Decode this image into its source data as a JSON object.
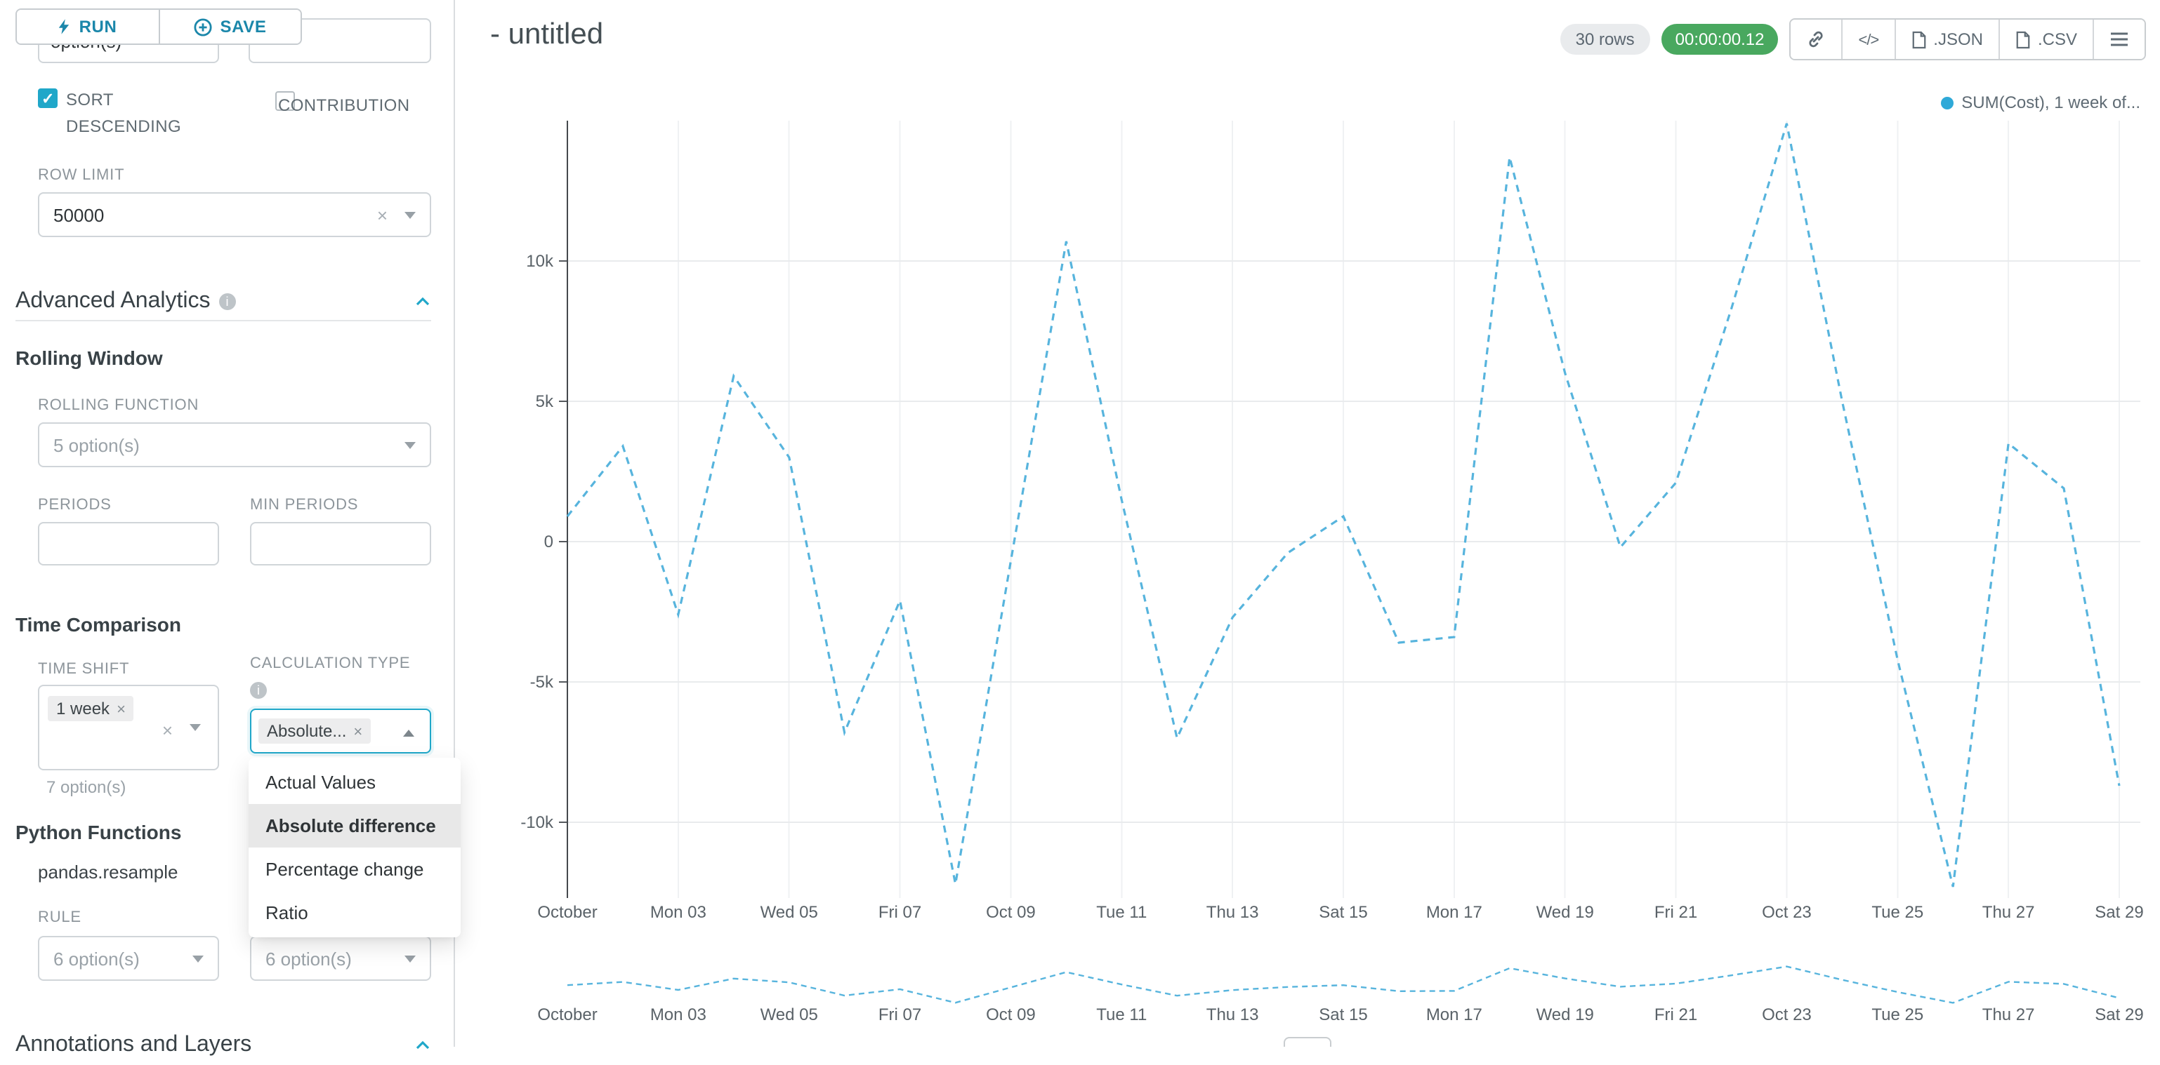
{
  "colors": {
    "primary": "#20a7c9",
    "run_save_text": "#1b87aa",
    "timer_bg": "#49a85f",
    "series_line": "#57b4dd",
    "legend_dot": "#2ea9d8",
    "selected_option_bg": "#e8e8e8"
  },
  "panel": {
    "run_label": "RUN",
    "save_label": "SAVE",
    "partial_select_text": "option(s)",
    "sort_descending_label": "SORT DESCENDING",
    "contribution_label": "CONTRIBUTION",
    "row_limit": {
      "label": "ROW LIMIT",
      "value": "50000"
    },
    "advanced_analytics_title": "Advanced Analytics",
    "rolling_window": {
      "title": "Rolling Window",
      "rolling_function_label": "ROLLING FUNCTION",
      "rolling_function_placeholder": "5 option(s)",
      "periods_label": "PERIODS",
      "min_periods_label": "MIN PERIODS"
    },
    "time_comparison": {
      "title": "Time Comparison",
      "time_shift_label": "TIME SHIFT",
      "time_shift_tag": "1 week",
      "time_shift_helper": "7 option(s)",
      "calculation_type_label": "CALCULATION TYPE",
      "calculation_type_value": "Absolute...",
      "dropdown_options": [
        "Actual Values",
        "Absolute difference",
        "Percentage change",
        "Ratio"
      ],
      "dropdown_selected": "Absolute difference"
    },
    "python_functions": {
      "title": "Python Functions",
      "function_name": "pandas.resample",
      "rule_label": "RULE",
      "rule_placeholder": "6 option(s)",
      "method_placeholder": "6 option(s)"
    },
    "annotations_title": "Annotations and Layers"
  },
  "header": {
    "title": "- untitled",
    "rows_badge": "30 rows",
    "timer_badge": "00:00:00.12",
    "json_label": ".JSON",
    "csv_label": ".CSV"
  },
  "chart_data": {
    "type": "line",
    "legend_label": "SUM(Cost), 1 week of...",
    "legend_position": "top-right",
    "grid": true,
    "x_tick_labels": [
      "October",
      "Mon 03",
      "Wed 05",
      "Fri 07",
      "Oct 09",
      "Tue 11",
      "Thu 13",
      "Sat 15",
      "Mon 17",
      "Wed 19",
      "Fri 21",
      "Oct 23",
      "Tue 25",
      "Thu 27",
      "Sat 29"
    ],
    "y_tick_labels": [
      "10k",
      "5k",
      "0",
      "-5k",
      "-10k"
    ],
    "y_tick_values": [
      10000,
      5000,
      0,
      -5000,
      -10000
    ],
    "ylim": [
      -15000,
      15000
    ],
    "x_range_days": 29,
    "series": [
      {
        "name": "SUM(Cost), 1 week offset, absolute difference",
        "color": "#57b4dd",
        "dashed": true,
        "values": [
          900,
          3400,
          -2600,
          5900,
          3000,
          -6800,
          -2100,
          -12200,
          -700,
          10700,
          1500,
          -7000,
          -2700,
          -400,
          900,
          -3600,
          -3400,
          13700,
          6000,
          -200,
          2100,
          8300,
          14900,
          5000,
          -4200,
          -12300,
          3500,
          1900,
          -8700
        ]
      }
    ],
    "mini_chart": true
  }
}
